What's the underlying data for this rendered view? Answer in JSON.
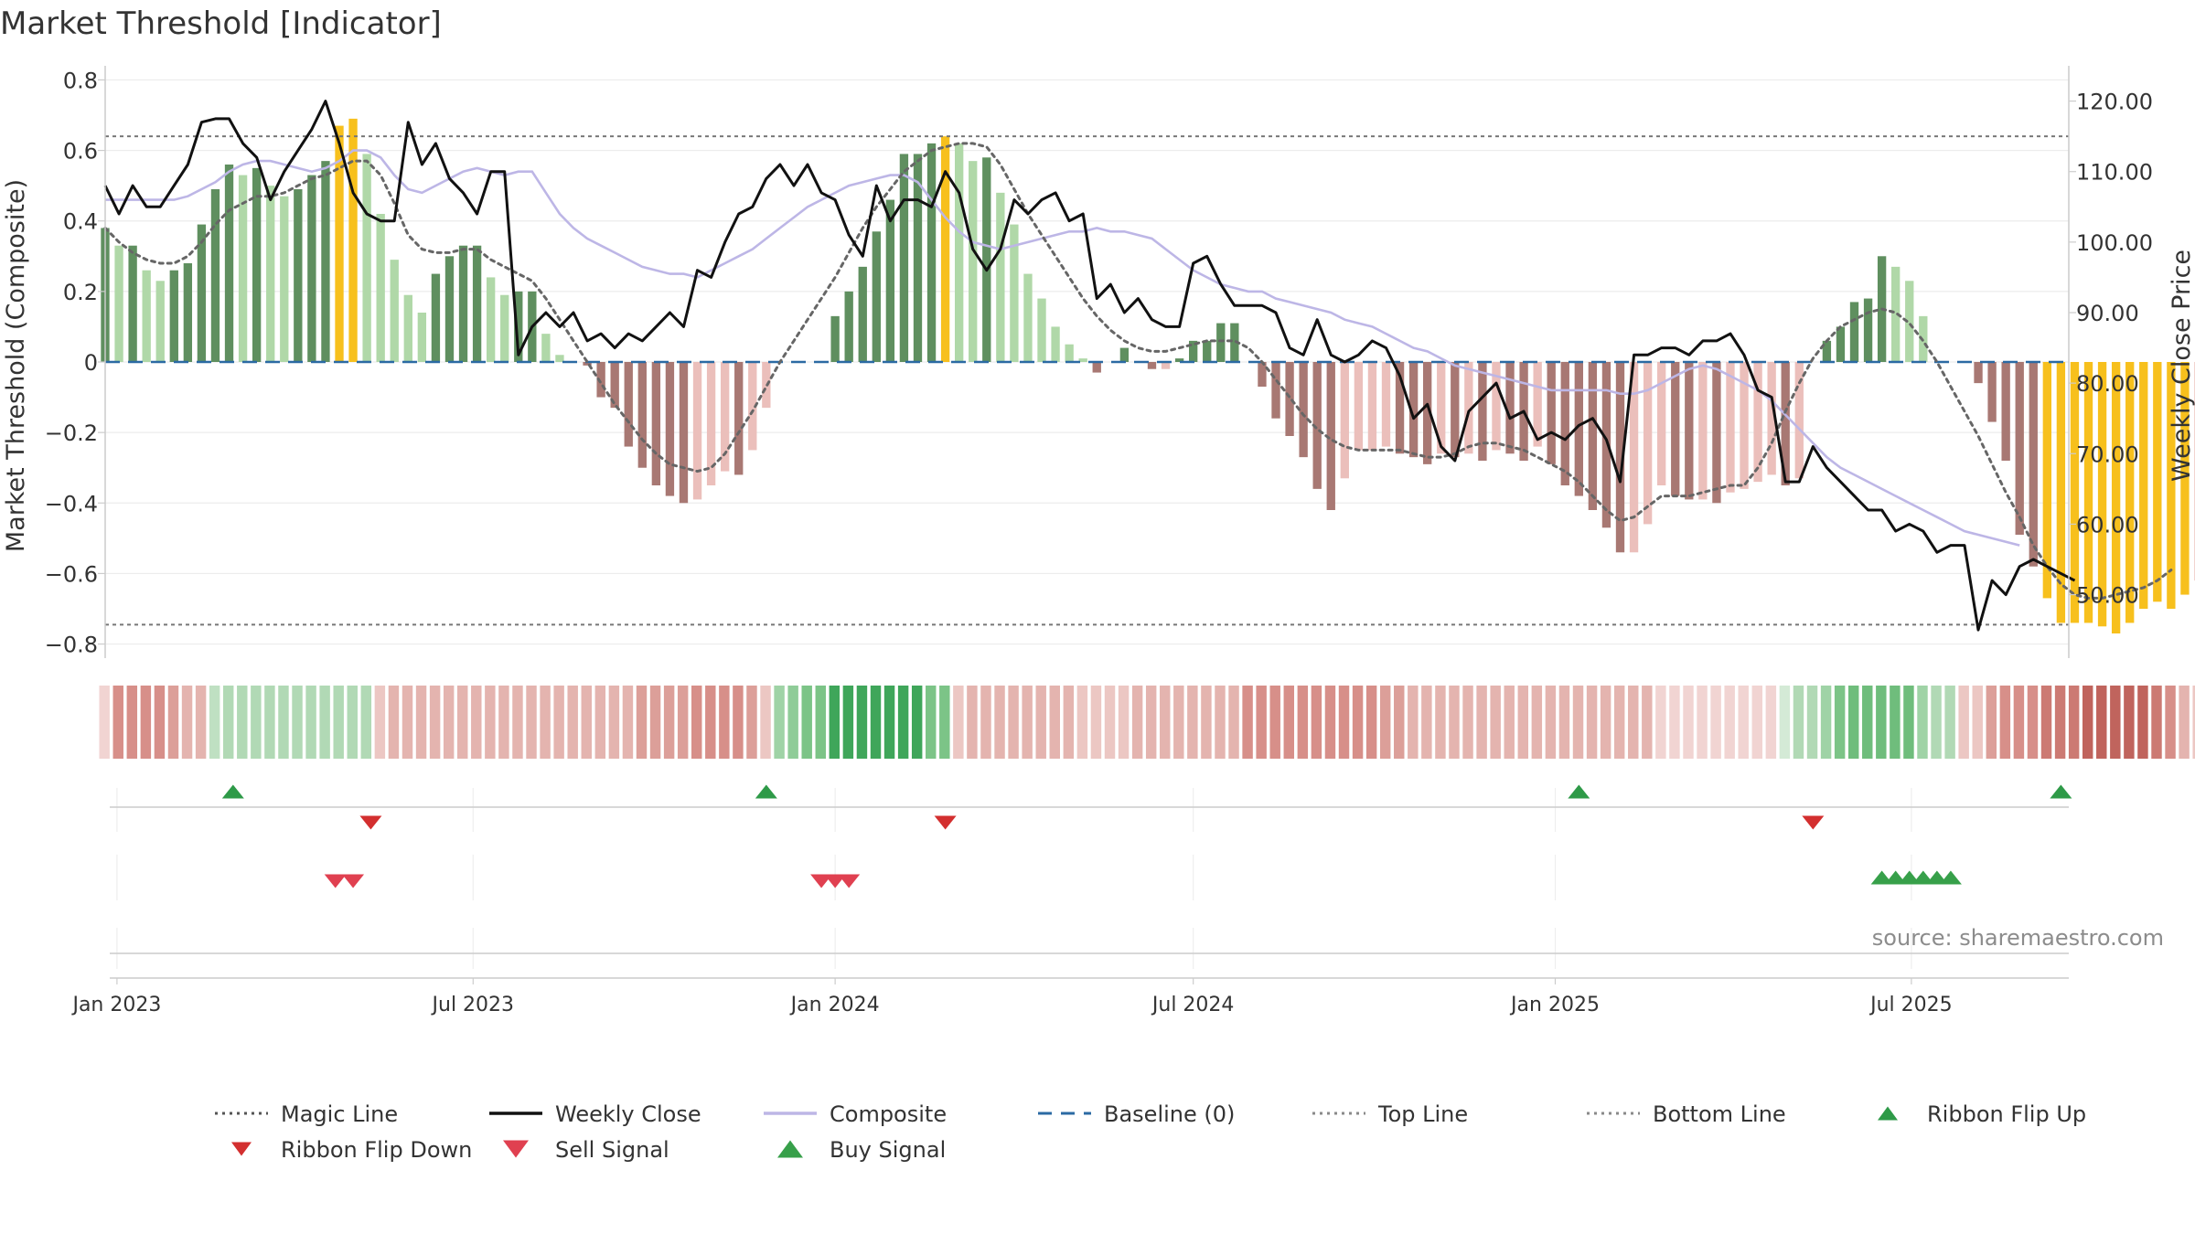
{
  "chart_data": {
    "type": "bar",
    "title": "Market Threshold [Indicator]",
    "ylabel": "Market Threshold (Composite)",
    "y2label": "Weekly Close Price",
    "source": "source: sharemaestro.com",
    "ylim": [
      -0.84,
      0.84
    ],
    "y2lim": [
      41,
      125
    ],
    "y_ticks": [
      0.8,
      0.6,
      0.4,
      0.2,
      0,
      -0.2,
      -0.4,
      -0.6,
      -0.8
    ],
    "y_tick_labels": [
      "0.8",
      "0.6",
      "0.4",
      "0.2",
      "0",
      "−0.2",
      "−0.4",
      "−0.6",
      "−0.8"
    ],
    "y2_ticks": [
      120,
      110,
      100,
      90,
      80,
      70,
      60,
      50
    ],
    "y2_tick_labels": [
      "120.00",
      "110.00",
      "100.00",
      "90.00",
      "80.00",
      "70.00",
      "60.00",
      "50.00"
    ],
    "x_start": "2022-12-26",
    "x_end": "2025-09-19",
    "x_ticks": [
      {
        "date": "2023-01-01",
        "label": "Jan 2023"
      },
      {
        "date": "2023-07-01",
        "label": "Jul 2023"
      },
      {
        "date": "2024-01-01",
        "label": "Jan 2024"
      },
      {
        "date": "2024-07-01",
        "label": "Jul 2024"
      },
      {
        "date": "2025-01-01",
        "label": "Jan 2025"
      },
      {
        "date": "2025-07-01",
        "label": "Jul 2025"
      }
    ],
    "first_week": "2022-12-26",
    "top_line": 0.64,
    "bottom_line": -0.745,
    "baseline": 0,
    "composite_bars": [
      0.38,
      0.33,
      0.33,
      0.26,
      0.23,
      0.26,
      0.28,
      0.39,
      0.49,
      0.56,
      0.53,
      0.55,
      0.5,
      0.47,
      0.49,
      0.53,
      0.57,
      0.67,
      0.69,
      0.59,
      0.42,
      0.29,
      0.19,
      0.14,
      0.25,
      0.3,
      0.33,
      0.33,
      0.24,
      0.19,
      0.2,
      0.2,
      0.08,
      0.02,
      0.0,
      -0.01,
      -0.1,
      -0.13,
      -0.24,
      -0.3,
      -0.35,
      -0.38,
      -0.4,
      -0.39,
      -0.35,
      -0.31,
      -0.32,
      -0.25,
      -0.13,
      0.0,
      0.0,
      0.0,
      0.0,
      0.13,
      0.2,
      0.27,
      0.37,
      0.46,
      0.59,
      0.59,
      0.62,
      0.64,
      0.62,
      0.57,
      0.58,
      0.48,
      0.39,
      0.25,
      0.18,
      0.1,
      0.05,
      0.01,
      -0.03,
      0.0,
      0.04,
      0.0,
      -0.02,
      -0.02,
      0.01,
      0.06,
      0.06,
      0.11,
      0.11,
      0.0,
      -0.07,
      -0.16,
      -0.21,
      -0.27,
      -0.36,
      -0.42,
      -0.33,
      -0.25,
      -0.25,
      -0.24,
      -0.26,
      -0.27,
      -0.29,
      -0.26,
      -0.27,
      -0.26,
      -0.28,
      -0.25,
      -0.26,
      -0.28,
      -0.24,
      -0.29,
      -0.35,
      -0.38,
      -0.42,
      -0.47,
      -0.54,
      -0.54,
      -0.46,
      -0.35,
      -0.38,
      -0.39,
      -0.39,
      -0.4,
      -0.37,
      -0.36,
      -0.34,
      -0.32,
      -0.35,
      -0.33,
      0.0,
      0.06,
      0.1,
      0.17,
      0.18,
      0.3,
      0.27,
      0.23,
      0.13,
      0.0,
      0.0,
      0.0,
      -0.06,
      -0.17,
      -0.28,
      -0.49,
      -0.58,
      -0.67,
      -0.74,
      -0.74,
      -0.74,
      -0.75,
      -0.77,
      -0.74,
      -0.7,
      -0.68,
      -0.7,
      -0.66,
      -0.62,
      -0.6,
      -0.58,
      -0.55,
      -0.54
    ],
    "composite_line": [
      106,
      106,
      106,
      106,
      106,
      106,
      106.5,
      107.5,
      108.5,
      110,
      111,
      111.5,
      111.5,
      111,
      110.5,
      110,
      110.5,
      111.5,
      113,
      113,
      112,
      109.5,
      107.5,
      107,
      108,
      109,
      110,
      110.5,
      110,
      109.5,
      110,
      110,
      107,
      104,
      102,
      100.5,
      99.5,
      98.5,
      97.5,
      96.5,
      96,
      95.5,
      95.5,
      95,
      96,
      97,
      98,
      99,
      100.5,
      102,
      103.5,
      105,
      106,
      107,
      108,
      108.5,
      109,
      109.5,
      109.5,
      108.5,
      106,
      103.5,
      101.5,
      100,
      99.5,
      99,
      99.5,
      100,
      100.5,
      101,
      101.5,
      101.5,
      102,
      101.5,
      101.5,
      101,
      100.5,
      99,
      97.5,
      96,
      95,
      94,
      93.5,
      93,
      93,
      92,
      91.5,
      91,
      90.5,
      90,
      89,
      88.5,
      88,
      87,
      86,
      85,
      84.5,
      83.5,
      82.5,
      82,
      81.5,
      81,
      80.5,
      80,
      79.5,
      79,
      79,
      79,
      79,
      79,
      78.5,
      78.5,
      79,
      80,
      81,
      82,
      82.5,
      82,
      81,
      80,
      79,
      77.5,
      75.5,
      73.5,
      71.5,
      69.5,
      68,
      67,
      66,
      65,
      64,
      63,
      62,
      61,
      60,
      59,
      58.5,
      58,
      57.5,
      57
    ],
    "magic_line": [
      0.38,
      0.34,
      0.31,
      0.29,
      0.28,
      0.28,
      0.3,
      0.34,
      0.39,
      0.43,
      0.45,
      0.47,
      0.47,
      0.48,
      0.5,
      0.52,
      0.53,
      0.55,
      0.57,
      0.57,
      0.53,
      0.45,
      0.36,
      0.32,
      0.31,
      0.31,
      0.32,
      0.32,
      0.29,
      0.27,
      0.25,
      0.23,
      0.18,
      0.12,
      0.06,
      0.0,
      -0.06,
      -0.12,
      -0.17,
      -0.22,
      -0.26,
      -0.29,
      -0.3,
      -0.31,
      -0.3,
      -0.26,
      -0.2,
      -0.14,
      -0.07,
      0.0,
      0.06,
      0.12,
      0.18,
      0.24,
      0.31,
      0.38,
      0.44,
      0.49,
      0.54,
      0.57,
      0.6,
      0.61,
      0.62,
      0.62,
      0.61,
      0.56,
      0.49,
      0.42,
      0.36,
      0.3,
      0.24,
      0.18,
      0.13,
      0.09,
      0.06,
      0.04,
      0.03,
      0.03,
      0.04,
      0.05,
      0.06,
      0.06,
      0.06,
      0.04,
      0.0,
      -0.05,
      -0.1,
      -0.15,
      -0.19,
      -0.22,
      -0.24,
      -0.25,
      -0.25,
      -0.25,
      -0.25,
      -0.26,
      -0.27,
      -0.27,
      -0.26,
      -0.24,
      -0.23,
      -0.23,
      -0.24,
      -0.25,
      -0.27,
      -0.29,
      -0.31,
      -0.34,
      -0.38,
      -0.42,
      -0.45,
      -0.44,
      -0.41,
      -0.38,
      -0.38,
      -0.38,
      -0.37,
      -0.36,
      -0.35,
      -0.35,
      -0.3,
      -0.23,
      -0.14,
      -0.06,
      0.01,
      0.06,
      0.1,
      0.12,
      0.14,
      0.15,
      0.14,
      0.11,
      0.06,
      0.0,
      -0.07,
      -0.14,
      -0.21,
      -0.29,
      -0.37,
      -0.44,
      -0.52,
      -0.58,
      -0.63,
      -0.66,
      -0.67,
      -0.67,
      -0.66,
      -0.65,
      -0.64,
      -0.62,
      -0.59
    ],
    "weekly_close": [
      108,
      104,
      108,
      105,
      105,
      108,
      111,
      117,
      117.5,
      117.5,
      114,
      112,
      106,
      110,
      113,
      116,
      120,
      114,
      107,
      104,
      103,
      103,
      117,
      111,
      114,
      109,
      107,
      104,
      110,
      110,
      84,
      88,
      90,
      88,
      90,
      86,
      87,
      85,
      87,
      86,
      88,
      90,
      88,
      96,
      95,
      100,
      104,
      105,
      109,
      111,
      108,
      111,
      107,
      106,
      101,
      98,
      108,
      103,
      106,
      106,
      105,
      110,
      107,
      99,
      96,
      99,
      106,
      104,
      106,
      107,
      103,
      104,
      92,
      94,
      90,
      92,
      89,
      88,
      88,
      97,
      98,
      94,
      91,
      91,
      91,
      90,
      85,
      84,
      89,
      84,
      83,
      84,
      86,
      85,
      81,
      75,
      77,
      71,
      69,
      76,
      78,
      80,
      75,
      76,
      72,
      73,
      72,
      74,
      75,
      72,
      66,
      84,
      84,
      85,
      85,
      84,
      86,
      86,
      87,
      84,
      79,
      78,
      66,
      66,
      71,
      68,
      66,
      64,
      62,
      62,
      59,
      60,
      59,
      56,
      57,
      57,
      45,
      52,
      50,
      54,
      55,
      54,
      53,
      52
    ]
  },
  "ribbon": {
    "colors": [
      "#f1d4d2",
      "#d78f89",
      "#d78f89",
      "#d78f89",
      "#d78f89",
      "#dc9f99",
      "#e4b4af",
      "#e4b4af",
      "#bfe0c2",
      "#b1d9b5",
      "#b1d9b5",
      "#b1d9b5",
      "#b1d9b5",
      "#b1d9b5",
      "#b1d9b5",
      "#b1d9b5",
      "#b1d9b5",
      "#b1d9b5",
      "#b1d9b5",
      "#b1d9b5",
      "#ecc7c3",
      "#e4b4af",
      "#e4b4af",
      "#e4b4af",
      "#e4b4af",
      "#e4b4af",
      "#e4b4af",
      "#e4b4af",
      "#e4b4af",
      "#e4b4af",
      "#e4b4af",
      "#e4b4af",
      "#e4b4af",
      "#e4b4af",
      "#e4b4af",
      "#e4b4af",
      "#e4b4af",
      "#e4b4af",
      "#e4b4af",
      "#dc9f99",
      "#dc9f99",
      "#dc9f99",
      "#dc9f99",
      "#d78f89",
      "#d78f89",
      "#d78f89",
      "#d78f89",
      "#dc9f99",
      "#ecc7c3",
      "#9fd3a6",
      "#8fcc98",
      "#7cc487",
      "#7cc487",
      "#3fa65a",
      "#3fa65a",
      "#3fa65a",
      "#3fa65a",
      "#3fa65a",
      "#3fa65a",
      "#3fa65a",
      "#7cc487",
      "#7cc487",
      "#ecc7c3",
      "#e4b4af",
      "#e4b4af",
      "#e4b4af",
      "#e4b4af",
      "#e4b4af",
      "#e4b4af",
      "#e4b4af",
      "#e4b4af",
      "#ecc7c3",
      "#ecc7c3",
      "#ecc7c3",
      "#ecc7c3",
      "#e4b4af",
      "#e4b4af",
      "#e4b4af",
      "#e4b4af",
      "#e4b4af",
      "#e4b4af",
      "#e4b4af",
      "#e4b4af",
      "#d78f89",
      "#d78f89",
      "#d78f89",
      "#d78f89",
      "#d78f89",
      "#d78f89",
      "#d78f89",
      "#d78f89",
      "#d78f89",
      "#d78f89",
      "#dc9f99",
      "#dc9f99",
      "#e4b4af",
      "#e4b4af",
      "#e4b4af",
      "#e4b4af",
      "#e4b4af",
      "#e4b4af",
      "#e4b4af",
      "#e4b4af",
      "#e4b4af",
      "#e4b4af",
      "#e4b4af",
      "#e4b4af",
      "#e4b4af",
      "#e4b4af",
      "#e4b4af",
      "#e4b4af",
      "#e4b4af",
      "#e4b4af",
      "#f1d4d2",
      "#f1d4d2",
      "#f1d4d2",
      "#f1d4d2",
      "#f1d4d2",
      "#f1d4d2",
      "#f1d4d2",
      "#f1d4d2",
      "#f1d4d2",
      "#d4ead6",
      "#b1d9b5",
      "#b1d9b5",
      "#9fd3a6",
      "#7cc487",
      "#6fbd7c",
      "#6fbd7c",
      "#6fbd7c",
      "#6fbd7c",
      "#6fbd7c",
      "#9fd3a6",
      "#b1d9b5",
      "#b1d9b5",
      "#ecc7c3",
      "#ecc7c3",
      "#dc9f99",
      "#d78f89",
      "#d78f89",
      "#d78f89",
      "#cc7a73",
      "#cc7a73",
      "#cc7a73",
      "#c0645d",
      "#c0645d",
      "#c0645d",
      "#c0645d",
      "#c0645d",
      "#cc7a73",
      "#d78f89",
      "#e4b4af",
      "#ecc7c3",
      "#f1d4d2",
      "#f1d4d2",
      "#f1d4d2",
      "#d4ead6"
    ]
  },
  "ribbon_flip_up": [
    "2023-03-01",
    "2023-11-27",
    "2025-01-13",
    "2025-09-15"
  ],
  "ribbon_flip_down": [
    "2023-05-10",
    "2024-02-26",
    "2025-05-12"
  ],
  "sell_signal": [
    "2023-04-22",
    "2023-05-01",
    "2023-12-25",
    "2024-01-01",
    "2024-01-08"
  ],
  "buy_signal": [
    "2025-06-16",
    "2025-06-23",
    "2025-06-30",
    "2025-07-07",
    "2025-07-14",
    "2025-07-21"
  ],
  "colors": {
    "bar_dark_green": "#5f8f5f",
    "bar_light_green": "#b0d8a8",
    "bar_dark_red": "#a87873",
    "bar_light_red": "#ebbfbb",
    "bar_extreme": "#f7c01d",
    "composite_line": "#bdb6e6",
    "weekly_close": "#111111",
    "magic_line": "#666666",
    "baseline": "#2b6aa3",
    "flip_up": "#2e9a48",
    "flip_down": "#d32f2f",
    "sell_signal": "#e04050",
    "buy_signal": "#37a04a"
  },
  "legend": [
    {
      "label": "Magic Line",
      "icon": "dotted-line"
    },
    {
      "label": "Weekly Close",
      "icon": "solid-line"
    },
    {
      "label": "Composite",
      "icon": "lavender-line"
    },
    {
      "label": "Baseline (0)",
      "icon": "dashed-blue-line"
    },
    {
      "label": "Top Line",
      "icon": "dotted-line"
    },
    {
      "label": "Bottom Line",
      "icon": "dotted-line"
    },
    {
      "label": "Ribbon Flip Up",
      "icon": "triangle-up"
    },
    {
      "label": "Ribbon Flip Down",
      "icon": "triangle-down"
    },
    {
      "label": "Sell Signal",
      "icon": "triangle-down"
    },
    {
      "label": "Buy Signal",
      "icon": "triangle-up"
    }
  ]
}
